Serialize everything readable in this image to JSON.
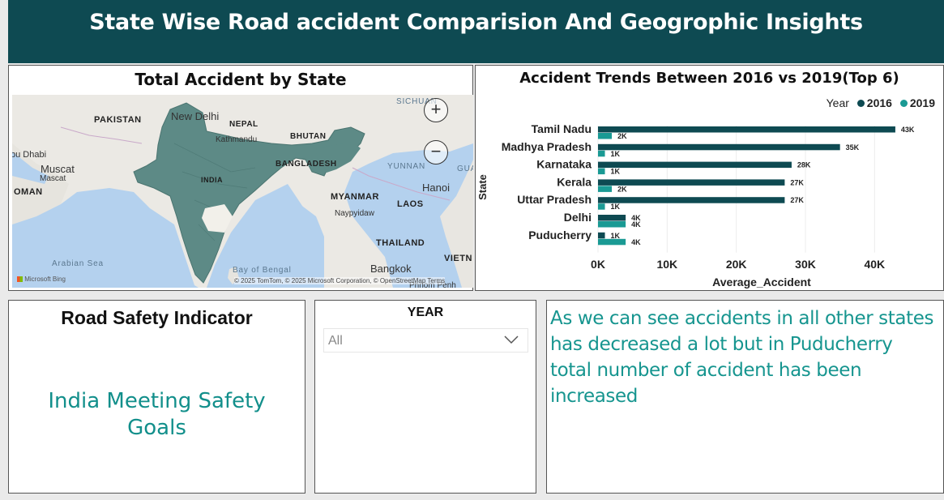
{
  "header": {
    "title": "State Wise Road accident Comparision And Geogrophic Insights"
  },
  "map": {
    "title": "Total Accident by State",
    "labels": {
      "pakistan": "PAKISTAN",
      "new_delhi": "New Delhi",
      "nepal": "NEPAL",
      "kathmandu": "Kathmandu",
      "bhutan": "BHUTAN",
      "sichuan": "SICHUAN",
      "abu_dhabi": "bu Dhabi",
      "muscat": "Muscat",
      "mascat": "Mascat",
      "oman": "OMAN",
      "india": "INDIA",
      "bangladesh": "BANGLADESH",
      "yunnan": "YUNNAN",
      "guangxi": "GUANG",
      "myanmar": "MYANMAR",
      "hanoi": "Hanoi",
      "naypyidaw": "Naypyidaw",
      "laos": "LAOS",
      "thailand": "THAILAND",
      "vietnam": "VIETN",
      "arabian_sea": "Arabian Sea",
      "bay_of_bengal": "Bay of Bengal",
      "bangkok": "Bangkok",
      "phnom_penh": "Phnom Penh"
    },
    "zoom_in": "+",
    "zoom_out": "−",
    "attribution": "© 2025 TomTom, © 2025 Microsoft Corporation, © OpenStreetMap  Terms",
    "bing_logo": "Microsoft Bing",
    "region_color": "#5d8a86"
  },
  "trend": {
    "title": "Accident Trends Between 2016 vs 2019(Top 6)",
    "legend_title": "Year",
    "colors": {
      "2016": "#0e4a52",
      "2019": "#1a9a94"
    }
  },
  "chart_data": {
    "type": "bar",
    "orientation": "horizontal",
    "title": "Accident Trends Between 2016 vs 2019(Top 6)",
    "xlabel": "Average_Accident",
    "ylabel": "State",
    "categories": [
      "Tamil Nadu",
      "Madhya Pradesh",
      "Karnataka",
      "Kerala",
      "Uttar Pradesh",
      "Delhi",
      "Puducherry"
    ],
    "series": [
      {
        "name": "2016",
        "values": [
          43000,
          35000,
          28000,
          27000,
          27000,
          4000,
          1000
        ],
        "labels": [
          "43K",
          "35K",
          "28K",
          "27K",
          "27K",
          "4K",
          "1K"
        ]
      },
      {
        "name": "2019",
        "values": [
          2000,
          1000,
          1000,
          2000,
          1000,
          4000,
          4000
        ],
        "labels": [
          "2K",
          "1K",
          "1K",
          "2K",
          "1K",
          "4K",
          "4K"
        ]
      }
    ],
    "xlim": [
      0,
      45000
    ],
    "xticks": [
      0,
      10000,
      20000,
      30000,
      40000
    ],
    "xtick_labels": [
      "0K",
      "10K",
      "20K",
      "30K",
      "40K"
    ],
    "grid": true,
    "legend_position": "top-right"
  },
  "indicator": {
    "title": "Road Safety Indicator",
    "text": "India Meeting Safety Goals"
  },
  "slicer": {
    "title": "YEAR",
    "value": "All"
  },
  "note": {
    "text": "As we can see accidents in all other states has decreased a lot but in Puducherry total number of accident has been increased"
  }
}
